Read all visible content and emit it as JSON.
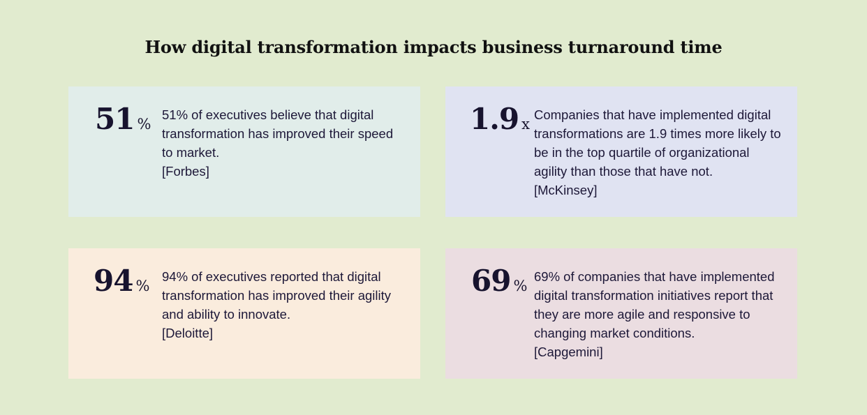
{
  "page": {
    "title": "How digital transformation impacts business turnaround time"
  },
  "stats": [
    {
      "number": "51",
      "unit": "%",
      "text": "51% of executives believe that digital transformation has improved their speed to market.",
      "source": "[Forbes]",
      "color": "#e1edea"
    },
    {
      "number": "1.9",
      "unit": "x",
      "text": "Companies that have implemented digital transformations are 1.9 times more likely to be in the top quartile of organizational agility than those that have not.",
      "source": "[McKinsey]",
      "color": "#e0e3f2"
    },
    {
      "number": "94",
      "unit": "%",
      "text": "94% of executives reported that digital transformation has improved their agility and ability to innovate.",
      "source": "[Deloitte]",
      "color": "#faecdd"
    },
    {
      "number": "69",
      "unit": "%",
      "text": "69% of companies that have implemented digital transformation initiatives report that they are more agile and responsive to changing market conditions.",
      "source": "[Capgemini]",
      "color": "#ebdde1"
    }
  ],
  "colors": {
    "background": "#e1ebcf",
    "text": "#1a1533"
  }
}
